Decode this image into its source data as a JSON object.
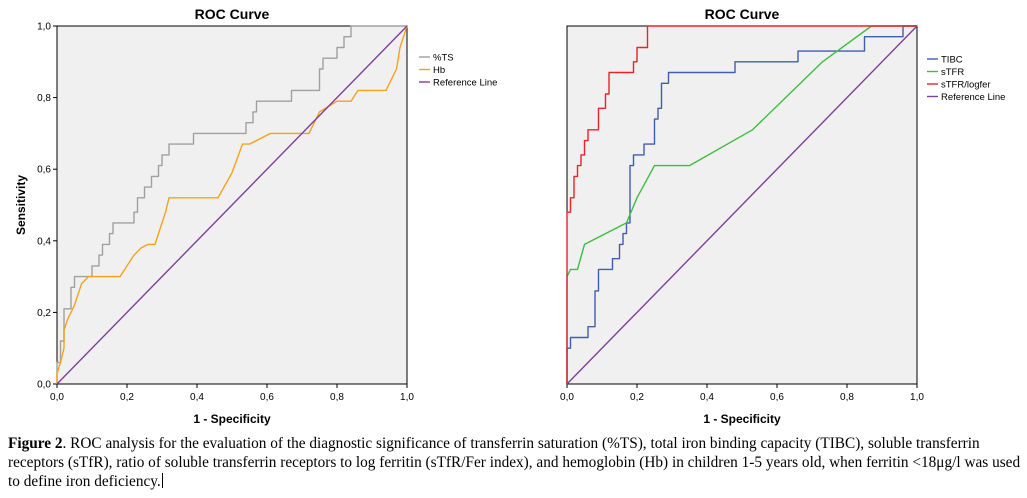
{
  "chart_data": [
    {
      "type": "line",
      "title": "ROC Curve",
      "xlabel": "1 - Specificity",
      "ylabel": "Sensitivity",
      "xlim": [
        0,
        1
      ],
      "ylim": [
        0,
        1
      ],
      "x_ticks": [
        "0,0",
        "0,2",
        "0,4",
        "0,6",
        "0,8",
        "1,0"
      ],
      "y_ticks": [
        "0,0",
        "0,2",
        "0,4",
        "0,6",
        "0,8",
        "1,0"
      ],
      "legend_position": "right",
      "series": [
        {
          "name": "%TS",
          "color": "#a0a0a0",
          "points": [
            [
              0,
              0
            ],
            [
              0,
              0.06
            ],
            [
              0.01,
              0.06
            ],
            [
              0.01,
              0.12
            ],
            [
              0.02,
              0.12
            ],
            [
              0.02,
              0.21
            ],
            [
              0.04,
              0.21
            ],
            [
              0.04,
              0.27
            ],
            [
              0.05,
              0.27
            ],
            [
              0.05,
              0.3
            ],
            [
              0.1,
              0.3
            ],
            [
              0.1,
              0.33
            ],
            [
              0.12,
              0.33
            ],
            [
              0.12,
              0.36
            ],
            [
              0.13,
              0.36
            ],
            [
              0.13,
              0.39
            ],
            [
              0.15,
              0.39
            ],
            [
              0.15,
              0.42
            ],
            [
              0.16,
              0.42
            ],
            [
              0.16,
              0.45
            ],
            [
              0.22,
              0.45
            ],
            [
              0.22,
              0.48
            ],
            [
              0.23,
              0.48
            ],
            [
              0.23,
              0.52
            ],
            [
              0.25,
              0.52
            ],
            [
              0.25,
              0.55
            ],
            [
              0.27,
              0.55
            ],
            [
              0.27,
              0.58
            ],
            [
              0.29,
              0.58
            ],
            [
              0.29,
              0.61
            ],
            [
              0.3,
              0.61
            ],
            [
              0.3,
              0.64
            ],
            [
              0.32,
              0.64
            ],
            [
              0.32,
              0.67
            ],
            [
              0.39,
              0.67
            ],
            [
              0.39,
              0.7
            ],
            [
              0.54,
              0.7
            ],
            [
              0.54,
              0.73
            ],
            [
              0.56,
              0.73
            ],
            [
              0.56,
              0.76
            ],
            [
              0.57,
              0.76
            ],
            [
              0.57,
              0.79
            ],
            [
              0.67,
              0.79
            ],
            [
              0.67,
              0.82
            ],
            [
              0.75,
              0.82
            ],
            [
              0.75,
              0.88
            ],
            [
              0.76,
              0.88
            ],
            [
              0.76,
              0.91
            ],
            [
              0.8,
              0.91
            ],
            [
              0.8,
              0.94
            ],
            [
              0.82,
              0.94
            ],
            [
              0.82,
              0.97
            ],
            [
              0.84,
              0.97
            ],
            [
              0.84,
              1.0
            ],
            [
              1.0,
              1.0
            ]
          ]
        },
        {
          "name": "Hb",
          "color": "#f5a21a",
          "points": [
            [
              0,
              0
            ],
            [
              0,
              0.03
            ],
            [
              0.01,
              0.06
            ],
            [
              0.02,
              0.1
            ],
            [
              0.02,
              0.15
            ],
            [
              0.03,
              0.18
            ],
            [
              0.04,
              0.2
            ],
            [
              0.05,
              0.22
            ],
            [
              0.06,
              0.25
            ],
            [
              0.07,
              0.28
            ],
            [
              0.09,
              0.3
            ],
            [
              0.18,
              0.3
            ],
            [
              0.2,
              0.33
            ],
            [
              0.22,
              0.36
            ],
            [
              0.24,
              0.38
            ],
            [
              0.26,
              0.39
            ],
            [
              0.28,
              0.39
            ],
            [
              0.31,
              0.48
            ],
            [
              0.32,
              0.52
            ],
            [
              0.46,
              0.52
            ],
            [
              0.5,
              0.59
            ],
            [
              0.53,
              0.67
            ],
            [
              0.55,
              0.67
            ],
            [
              0.61,
              0.7
            ],
            [
              0.72,
              0.7
            ],
            [
              0.75,
              0.76
            ],
            [
              0.8,
              0.79
            ],
            [
              0.84,
              0.79
            ],
            [
              0.86,
              0.82
            ],
            [
              0.94,
              0.82
            ],
            [
              0.97,
              0.88
            ],
            [
              0.98,
              0.94
            ],
            [
              0.99,
              0.97
            ],
            [
              1.0,
              1.0
            ]
          ]
        },
        {
          "name": "Reference Line",
          "color": "#7f3f98",
          "points": [
            [
              0,
              0
            ],
            [
              1,
              1
            ]
          ]
        }
      ]
    },
    {
      "type": "line",
      "title": "ROC Curve",
      "xlabel": "1 - Specificity",
      "ylabel": "",
      "xlim": [
        0,
        1
      ],
      "ylim": [
        0,
        1
      ],
      "x_ticks": [
        "0,0",
        "0,2",
        "0,4",
        "0,6",
        "0,8",
        "1,0"
      ],
      "y_ticks": [],
      "legend_position": "right",
      "series": [
        {
          "name": "TIBC",
          "color": "#3f5eac",
          "points": [
            [
              0,
              0
            ],
            [
              0,
              0.1
            ],
            [
              0.01,
              0.1
            ],
            [
              0.01,
              0.13
            ],
            [
              0.06,
              0.13
            ],
            [
              0.06,
              0.16
            ],
            [
              0.08,
              0.16
            ],
            [
              0.08,
              0.26
            ],
            [
              0.09,
              0.26
            ],
            [
              0.09,
              0.32
            ],
            [
              0.13,
              0.32
            ],
            [
              0.13,
              0.35
            ],
            [
              0.15,
              0.35
            ],
            [
              0.15,
              0.39
            ],
            [
              0.16,
              0.39
            ],
            [
              0.16,
              0.42
            ],
            [
              0.17,
              0.42
            ],
            [
              0.17,
              0.45
            ],
            [
              0.18,
              0.45
            ],
            [
              0.18,
              0.61
            ],
            [
              0.19,
              0.61
            ],
            [
              0.19,
              0.64
            ],
            [
              0.22,
              0.64
            ],
            [
              0.22,
              0.67
            ],
            [
              0.25,
              0.67
            ],
            [
              0.25,
              0.74
            ],
            [
              0.26,
              0.74
            ],
            [
              0.26,
              0.77
            ],
            [
              0.27,
              0.77
            ],
            [
              0.27,
              0.84
            ],
            [
              0.29,
              0.84
            ],
            [
              0.29,
              0.87
            ],
            [
              0.48,
              0.87
            ],
            [
              0.48,
              0.9
            ],
            [
              0.66,
              0.9
            ],
            [
              0.66,
              0.93
            ],
            [
              0.85,
              0.93
            ],
            [
              0.85,
              0.97
            ],
            [
              0.96,
              0.97
            ],
            [
              0.96,
              1.0
            ],
            [
              1.0,
              1.0
            ]
          ]
        },
        {
          "name": "sTFR",
          "color": "#3dbe3d",
          "points": [
            [
              0,
              0
            ],
            [
              0,
              0.3
            ],
            [
              0.01,
              0.32
            ],
            [
              0.03,
              0.32
            ],
            [
              0.05,
              0.39
            ],
            [
              0.17,
              0.45
            ],
            [
              0.2,
              0.52
            ],
            [
              0.25,
              0.61
            ],
            [
              0.35,
              0.61
            ],
            [
              0.53,
              0.71
            ],
            [
              0.73,
              0.9
            ],
            [
              0.87,
              1.0
            ],
            [
              1.0,
              1.0
            ]
          ]
        },
        {
          "name": "sTFR/logfer",
          "color": "#e8242a",
          "points": [
            [
              0,
              0
            ],
            [
              0,
              0.48
            ],
            [
              0.01,
              0.48
            ],
            [
              0.01,
              0.52
            ],
            [
              0.02,
              0.52
            ],
            [
              0.02,
              0.58
            ],
            [
              0.03,
              0.58
            ],
            [
              0.03,
              0.61
            ],
            [
              0.04,
              0.61
            ],
            [
              0.04,
              0.64
            ],
            [
              0.05,
              0.64
            ],
            [
              0.05,
              0.68
            ],
            [
              0.06,
              0.68
            ],
            [
              0.06,
              0.71
            ],
            [
              0.09,
              0.71
            ],
            [
              0.09,
              0.77
            ],
            [
              0.11,
              0.77
            ],
            [
              0.11,
              0.81
            ],
            [
              0.12,
              0.81
            ],
            [
              0.12,
              0.87
            ],
            [
              0.19,
              0.87
            ],
            [
              0.19,
              0.9
            ],
            [
              0.2,
              0.9
            ],
            [
              0.2,
              0.94
            ],
            [
              0.23,
              0.94
            ],
            [
              0.23,
              1.0
            ],
            [
              1.0,
              1.0
            ]
          ]
        },
        {
          "name": "Reference Line",
          "color": "#7f3f98",
          "points": [
            [
              0,
              0
            ],
            [
              1,
              1
            ]
          ]
        }
      ]
    }
  ],
  "caption": {
    "label": "Figure 2",
    "text": ". ROC analysis for the evaluation of the diagnostic significance of transferrin saturation (%TS), total iron binding capacity (TIBC), soluble transferrin receptors (sTfR), ratio of soluble transferrin receptors to log ferritin (sTfR/Fer index), and hemoglobin (Hb) in children 1-5 years old, when ferritin <18μg/l was used to define iron deficiency."
  }
}
